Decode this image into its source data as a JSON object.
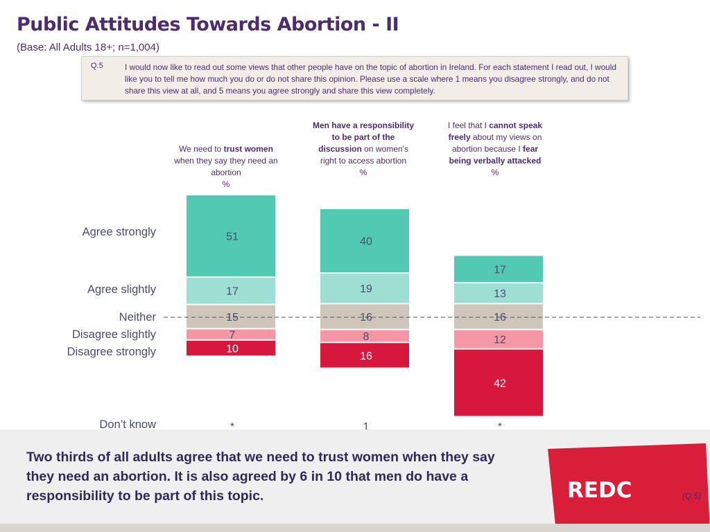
{
  "title": "Public Attitudes Towards Abortion - II",
  "base": "(Base: All Adults 18+; n=1,004)",
  "question": {
    "number": "Q.5",
    "text": "I would now like to read out some views that other people have on the topic of abortion in Ireland. For each statement I read out, I would like you to tell me how much you do or do not share this opinion. Please use a scale where 1 means you disagree strongly, and do not share this view at all, and 5 means you agree strongly and share this view completely."
  },
  "columns": [
    {
      "pre": "We need to ",
      "bold1": "trust women",
      "post": " when they say they need an abortion",
      "bold2": "",
      "post2": "",
      "unit": "%"
    },
    {
      "pre": "",
      "bold1": "Men have a responsibility to be part of the discussion",
      "post": " on women's right to access abortion",
      "bold2": "",
      "post2": "",
      "unit": "%"
    },
    {
      "pre": "I feel that I ",
      "bold1": "cannot speak freely",
      "post": " about my views on abortion because I ",
      "bold2": "fear being verbally attacked",
      "post2": "",
      "unit": "%"
    }
  ],
  "row_labels": {
    "agree_strongly": "Agree strongly",
    "agree_slightly": "Agree slightly",
    "neither": "Neither",
    "disagree_slightly": "Disagree slightly",
    "disagree_strongly": "Disagree strongly",
    "dont_know": "Don’t know"
  },
  "colors": {
    "agree_strongly": "#52c9b3",
    "agree_slightly": "#9de0d3",
    "neither": "#cec6bb",
    "disagree_slightly": "#f596a4",
    "disagree_strongly": "#d7173c",
    "title": "#4b2c6f",
    "brand_red": "#d91e3a"
  },
  "chart_data": {
    "type": "bar",
    "subtype": "diverging-stacked",
    "categories": [
      "We need to trust women when they say they need an abortion",
      "Men have a responsibility to be part of the discussion on women's right to access abortion",
      "I feel that I cannot speak freely about my views on abortion because I fear being verbally attacked"
    ],
    "series": [
      {
        "name": "Agree strongly",
        "key": "agree_strongly",
        "values": [
          51,
          40,
          17
        ]
      },
      {
        "name": "Agree slightly",
        "key": "agree_slightly",
        "values": [
          17,
          19,
          13
        ]
      },
      {
        "name": "Neither",
        "key": "neither",
        "values": [
          15,
          16,
          16
        ]
      },
      {
        "name": "Disagree slightly",
        "key": "disagree_slightly",
        "values": [
          7,
          8,
          12
        ]
      },
      {
        "name": "Disagree strongly",
        "key": "disagree_strongly",
        "values": [
          10,
          16,
          42
        ]
      }
    ],
    "dont_know": [
      "*",
      "1",
      "*"
    ],
    "ylabel": "%",
    "baseline": "dashed line through middle of Neither segment"
  },
  "summary": "Two thirds of all adults agree that we need to trust women when they say they need an abortion. It is also agreed by 6 in 10 that men do have a responsibility to be part of this topic.",
  "logo": "REDC",
  "qref": "(Q.5)"
}
